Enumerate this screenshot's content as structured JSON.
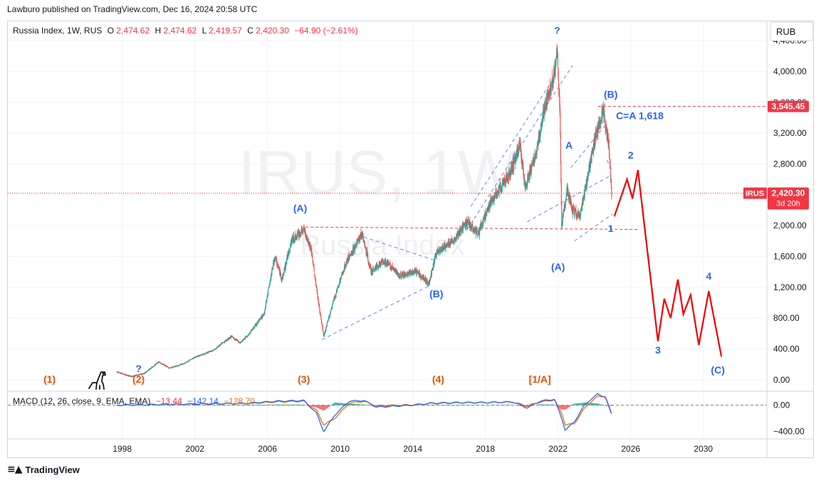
{
  "publisher_line": "Lawburo published on TradingView.com, Dec 16, 2024 20:58 UTC",
  "footer": {
    "brand": "TradingView"
  },
  "legend": {
    "symbol": "Russia Index, 1W, RUS",
    "o_label": "O",
    "o": "2,474.62",
    "h_label": "H",
    "h": "2,474.62",
    "l_label": "L",
    "l": "2,419.57",
    "c_label": "C",
    "c": "2,420.30",
    "change": "−64.90 (−2.61%)"
  },
  "currency_button": "RUB",
  "watermark": {
    "ticker": "IRUS, 1W",
    "name": "Russia Index"
  },
  "price_badges": {
    "level_value": "3,545.45",
    "ticker": "IRUS",
    "last": "2,420.30",
    "countdown": "3d 20h"
  },
  "macd_legend": {
    "label": "MACD (12, 26, close, 9, EMA, EMA)",
    "hist": "−13.44",
    "macd": "−142.14",
    "signal": "−128.70"
  },
  "colors": {
    "up": "#26a69a",
    "down": "#ef5350",
    "wave_blue": "#2962ff",
    "wave_orange": "#e65100",
    "projection": "#f00000",
    "macd_line": "#2962ff",
    "signal_line": "#ff6d00",
    "level_line": "#f23645",
    "badge_red": "#f23645"
  },
  "chart_data": [
    {
      "type": "candlestick",
      "title": "Russia Index, 1W, RUS",
      "x_ticks": [
        "1998",
        "2002",
        "2006",
        "2010",
        "2014",
        "2018",
        "2022",
        "2026",
        "2030"
      ],
      "y_ticks": [
        "4,400.00",
        "4,000.00",
        "3,600.00",
        "3,200.00",
        "2,800.00",
        "2,400.00",
        "2,000.00",
        "1,600.00",
        "1,200.00",
        "800.00",
        "400.00",
        "0.00"
      ],
      "ylim": [
        -150,
        4650
      ],
      "xlim": [
        1991.7,
        2033.5
      ],
      "price_path": [
        [
          1997.7,
          100
        ],
        [
          1998.5,
          40
        ],
        [
          1999.2,
          80
        ],
        [
          2000.0,
          230
        ],
        [
          2000.6,
          150
        ],
        [
          2001.3,
          200
        ],
        [
          2002.0,
          290
        ],
        [
          2003.0,
          380
        ],
        [
          2004.0,
          560
        ],
        [
          2004.5,
          480
        ],
        [
          2005.0,
          600
        ],
        [
          2005.8,
          850
        ],
        [
          2006.4,
          1600
        ],
        [
          2006.8,
          1300
        ],
        [
          2007.3,
          1800
        ],
        [
          2008.0,
          1950
        ],
        [
          2008.4,
          1700
        ],
        [
          2008.8,
          1000
        ],
        [
          2009.1,
          560
        ],
        [
          2009.6,
          1000
        ],
        [
          2010.3,
          1500
        ],
        [
          2011.2,
          1900
        ],
        [
          2011.7,
          1400
        ],
        [
          2012.4,
          1550
        ],
        [
          2013.3,
          1350
        ],
        [
          2014.2,
          1400
        ],
        [
          2014.9,
          1250
        ],
        [
          2015.3,
          1650
        ],
        [
          2016.2,
          1800
        ],
        [
          2017.0,
          2050
        ],
        [
          2017.6,
          1900
        ],
        [
          2018.4,
          2350
        ],
        [
          2019.3,
          2650
        ],
        [
          2019.9,
          3050
        ],
        [
          2020.2,
          2500
        ],
        [
          2020.8,
          2950
        ],
        [
          2021.2,
          3450
        ],
        [
          2021.8,
          4000
        ],
        [
          2021.95,
          4250
        ],
        [
          2022.1,
          3500
        ],
        [
          2022.2,
          2000
        ],
        [
          2022.5,
          2450
        ],
        [
          2022.8,
          2200
        ],
        [
          2023.2,
          2100
        ],
        [
          2023.6,
          2600
        ],
        [
          2024.0,
          3100
        ],
        [
          2024.3,
          3350
        ],
        [
          2024.5,
          3500
        ],
        [
          2024.8,
          3000
        ],
        [
          2024.95,
          2420
        ]
      ],
      "last_close": 2420.3,
      "horizontal_levels": [
        3545.45,
        1950,
        1980
      ],
      "projection_path": [
        [
          2025.1,
          2120
        ],
        [
          2025.8,
          2600
        ],
        [
          2026.1,
          2350
        ],
        [
          2026.4,
          2720
        ],
        [
          2027.5,
          500
        ],
        [
          2027.85,
          1050
        ],
        [
          2028.2,
          800
        ],
        [
          2028.6,
          1300
        ],
        [
          2028.9,
          850
        ],
        [
          2029.3,
          1100
        ],
        [
          2029.75,
          450
        ],
        [
          2030.3,
          1150
        ],
        [
          2031.0,
          300
        ]
      ],
      "wave_labels": [
        {
          "text": "(1)",
          "x": 1994.0,
          "color": "orange",
          "row": "bottom"
        },
        {
          "text": "?",
          "x": 1998.9,
          "color": "blue",
          "row": "bottom-upper"
        },
        {
          "text": "(2)",
          "x": 1998.9,
          "color": "orange",
          "row": "bottom"
        },
        {
          "text": "(3)",
          "x": 2008.0,
          "color": "orange",
          "row": "bottom"
        },
        {
          "text": "(4)",
          "x": 2015.4,
          "color": "orange",
          "row": "bottom"
        },
        {
          "text": "[1/A]",
          "x": 2021.0,
          "color": "orange",
          "row": "bottom"
        },
        {
          "text": "(A)",
          "x": 2007.8,
          "y": 2180,
          "color": "blue"
        },
        {
          "text": "(B)",
          "x": 2015.3,
          "y": 1070,
          "color": "blue"
        },
        {
          "text": "?",
          "x": 2021.95,
          "y": 4490,
          "color": "blue"
        },
        {
          "text": "A",
          "x": 2022.6,
          "y": 3000,
          "color": "blue"
        },
        {
          "text": "(A)",
          "x": 2022.0,
          "y": 1420,
          "color": "blue"
        },
        {
          "text": "(B)",
          "x": 2024.9,
          "y": 3660,
          "color": "blue"
        },
        {
          "text": "C=A 1,618",
          "x": 2026.5,
          "y": 3380,
          "color": "blue"
        },
        {
          "text": "2",
          "x": 2026.0,
          "y": 2870,
          "color": "blue"
        },
        {
          "text": "1",
          "x": 2024.9,
          "y": 1920,
          "color": "blue"
        },
        {
          "text": "3",
          "x": 2027.5,
          "y": 340,
          "color": "blue"
        },
        {
          "text": "4",
          "x": 2030.3,
          "y": 1300,
          "color": "blue"
        },
        {
          "text": "(C)",
          "x": 2030.8,
          "y": 80,
          "color": "blue"
        }
      ]
    },
    {
      "type": "line",
      "title": "MACD (12, 26, close, 9, EMA, EMA)",
      "y_ticks": [
        "0.00",
        "−400.00"
      ],
      "ylim": [
        -500,
        200
      ],
      "series": [
        {
          "name": "MACD",
          "values": [
            [
              1997.7,
              0
            ],
            [
              2000,
              10
            ],
            [
              2005,
              30
            ],
            [
              2006.5,
              60
            ],
            [
              2008,
              70
            ],
            [
              2008.7,
              -120
            ],
            [
              2009.1,
              -400
            ],
            [
              2009.7,
              -150
            ],
            [
              2010.5,
              60
            ],
            [
              2011.3,
              70
            ],
            [
              2012,
              -30
            ],
            [
              2014,
              0
            ],
            [
              2015,
              30
            ],
            [
              2016.5,
              40
            ],
            [
              2018,
              40
            ],
            [
              2019.5,
              50
            ],
            [
              2020.3,
              -40
            ],
            [
              2021,
              60
            ],
            [
              2021.8,
              90
            ],
            [
              2022.2,
              -200
            ],
            [
              2022.4,
              -380
            ],
            [
              2022.9,
              -250
            ],
            [
              2023.5,
              20
            ],
            [
              2024.2,
              170
            ],
            [
              2024.6,
              120
            ],
            [
              2024.95,
              -142.14
            ]
          ]
        },
        {
          "name": "Signal",
          "values": [
            [
              1997.7,
              0
            ],
            [
              2000,
              8
            ],
            [
              2005,
              25
            ],
            [
              2006.5,
              50
            ],
            [
              2008,
              60
            ],
            [
              2008.7,
              -80
            ],
            [
              2009.1,
              -300
            ],
            [
              2009.7,
              -200
            ],
            [
              2010.5,
              30
            ],
            [
              2011.3,
              60
            ],
            [
              2012,
              -10
            ],
            [
              2014,
              5
            ],
            [
              2015,
              25
            ],
            [
              2016.5,
              35
            ],
            [
              2018,
              38
            ],
            [
              2019.5,
              45
            ],
            [
              2020.3,
              -10
            ],
            [
              2021,
              45
            ],
            [
              2021.8,
              80
            ],
            [
              2022.2,
              -120
            ],
            [
              2022.4,
              -300
            ],
            [
              2022.9,
              -280
            ],
            [
              2023.5,
              -30
            ],
            [
              2024.2,
              140
            ],
            [
              2024.6,
              130
            ],
            [
              2024.95,
              -128.7
            ]
          ]
        }
      ]
    }
  ]
}
